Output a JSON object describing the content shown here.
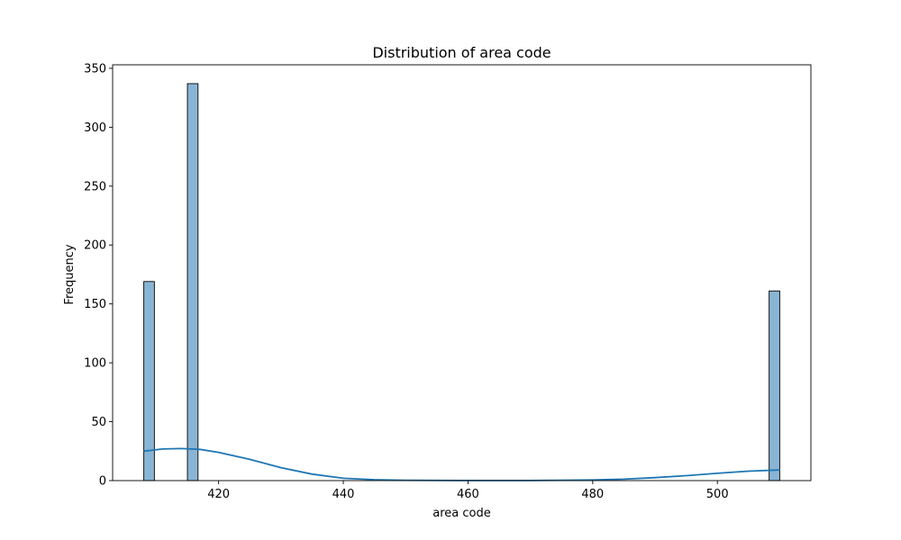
{
  "chart_data": {
    "type": "bar",
    "title": "Distribution of area code",
    "xlabel": "area code",
    "ylabel": "Frequency",
    "xlim": [
      403,
      515
    ],
    "ylim": [
      0,
      353
    ],
    "xticks": [
      420,
      440,
      460,
      480,
      500
    ],
    "yticks": [
      0,
      50,
      100,
      150,
      200,
      250,
      300,
      350
    ],
    "bin_width": 1.7,
    "bins": [
      {
        "x0": 408.0,
        "x1": 409.7,
        "count": 169
      },
      {
        "x0": 415.0,
        "x1": 416.7,
        "count": 337
      },
      {
        "x0": 508.3,
        "x1": 510.0,
        "count": 161
      }
    ],
    "kde": {
      "x": [
        408,
        411,
        414,
        417,
        420,
        425,
        430,
        435,
        440,
        445,
        450,
        460,
        470,
        480,
        485,
        490,
        495,
        500,
        505,
        510
      ],
      "y": [
        25,
        26.8,
        27.2,
        26.5,
        24,
        18,
        11,
        5.5,
        2,
        0.8,
        0.3,
        0.05,
        0.1,
        0.5,
        1.2,
        2.5,
        4.2,
        6.2,
        8,
        9
      ]
    },
    "colors": {
      "bar_fill": "#8ab4d4",
      "bar_edge": "#000000",
      "kde_line": "#1f77b4"
    },
    "grid": false,
    "legend": "none"
  }
}
